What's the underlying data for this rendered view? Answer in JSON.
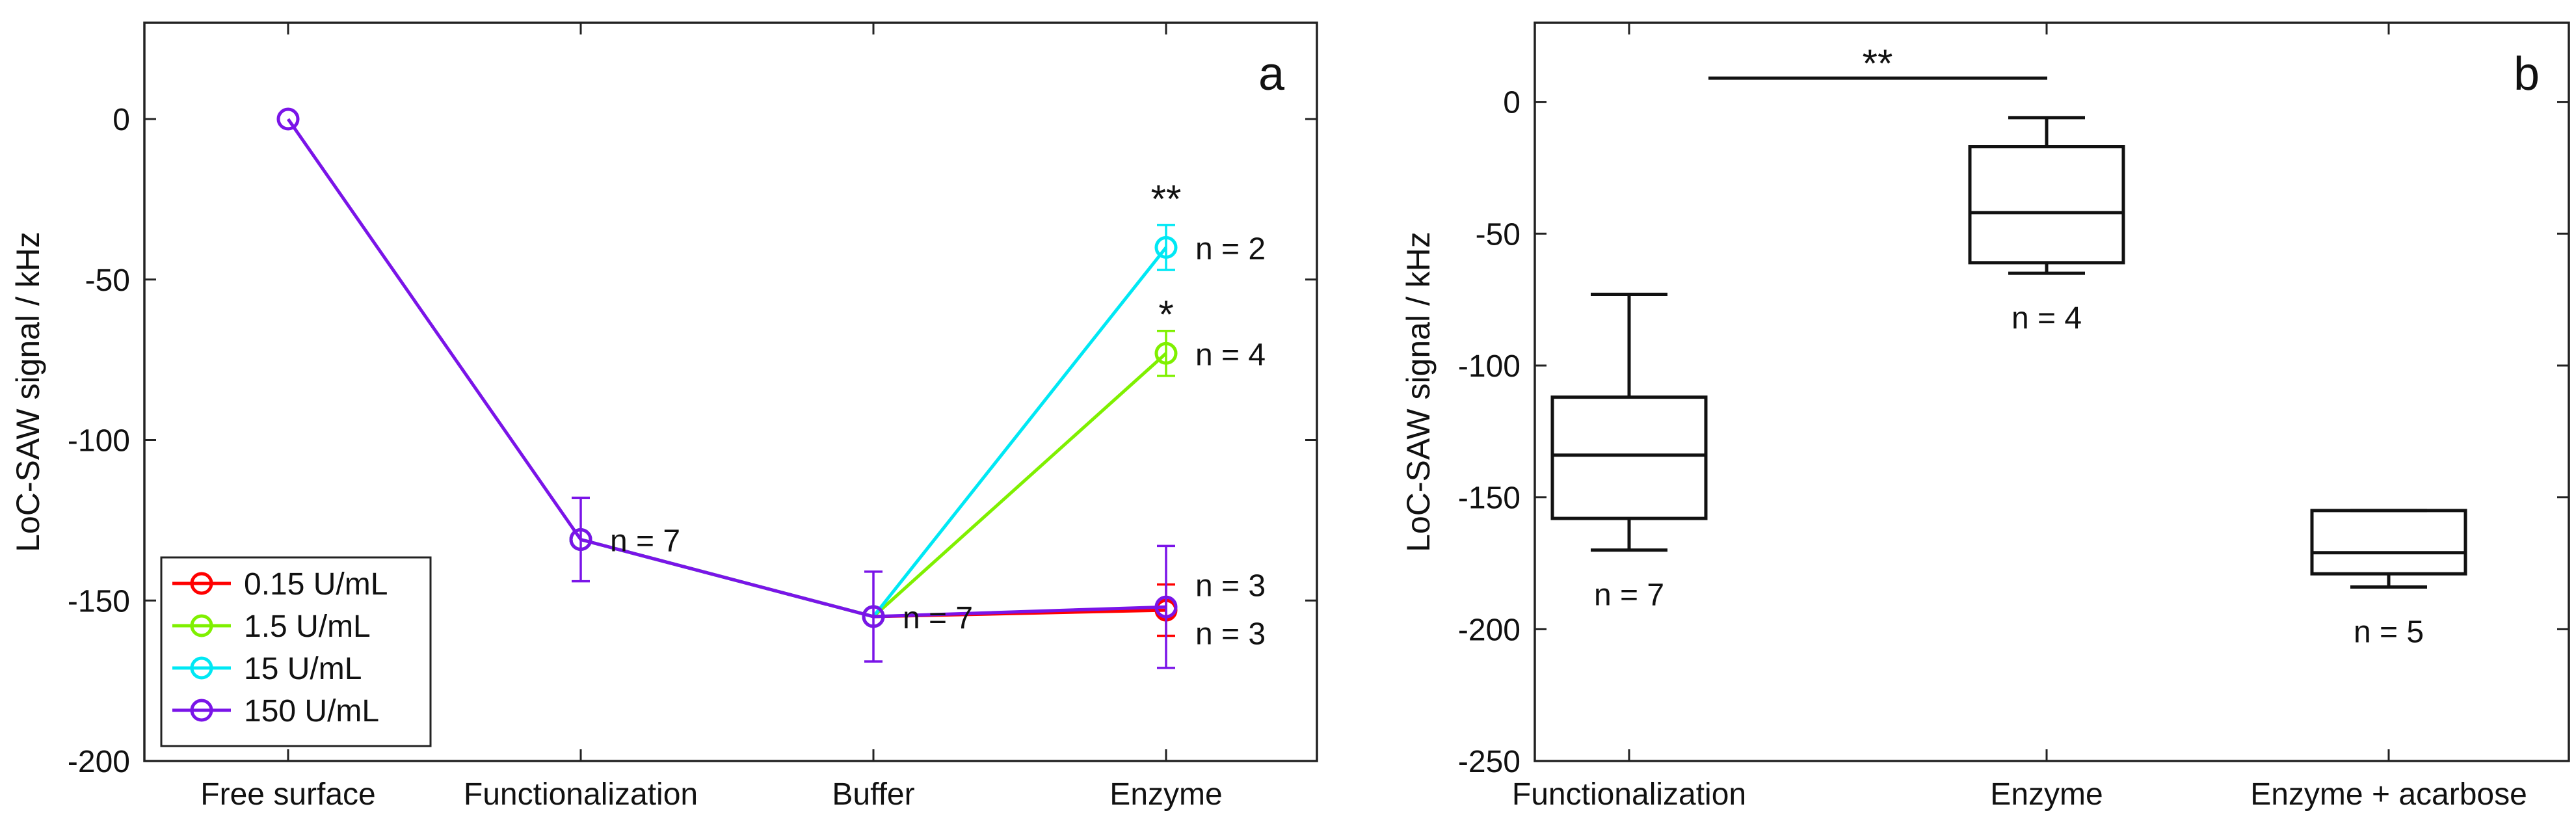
{
  "chart_data": [
    {
      "type": "line",
      "panel_label": "a",
      "xlabel": "",
      "ylabel": "LoC-SAW signal / kHz",
      "categories": [
        "Free surface",
        "Functionalization",
        "Buffer",
        "Enzyme"
      ],
      "ylim": [
        -200,
        30
      ],
      "yticks": [
        0,
        -50,
        -100,
        -150,
        -200
      ],
      "series": [
        {
          "name": "0.15 U/mL",
          "color": "#ff0000",
          "x": [
            2,
            3,
            4
          ],
          "y": [
            -131,
            -155,
            -153
          ],
          "err": [
            null,
            null,
            8
          ]
        },
        {
          "name": "1.5 U/mL",
          "color": "#7ff000",
          "x": [
            2,
            3,
            4
          ],
          "y": [
            -131,
            -155,
            -73
          ],
          "err": [
            null,
            null,
            7
          ]
        },
        {
          "name": "15 U/mL",
          "color": "#00e8f4",
          "x": [
            2,
            3,
            4
          ],
          "y": [
            -131,
            -155,
            -40
          ],
          "err": [
            null,
            null,
            7
          ]
        },
        {
          "name": "150 U/mL",
          "color": "#7a14e8",
          "x": [
            1,
            2,
            3,
            4
          ],
          "y": [
            0,
            -131,
            -155,
            -152
          ],
          "err": [
            0,
            13,
            14,
            19
          ]
        }
      ],
      "annotations": [
        {
          "text": "n = 7",
          "x": 2,
          "y": -131,
          "side": "right"
        },
        {
          "text": "n = 7",
          "x": 3,
          "y": -155,
          "side": "right"
        },
        {
          "text": "n = 2",
          "x": 4,
          "y": -40,
          "side": "right"
        },
        {
          "text": "n = 4",
          "x": 4,
          "y": -73,
          "side": "right"
        },
        {
          "text": "n = 3",
          "x": 4,
          "y": -145,
          "side": "right"
        },
        {
          "text": "n = 3",
          "x": 4,
          "y": -160,
          "side": "right"
        },
        {
          "text": "**",
          "x": 4,
          "y": -27,
          "side": "above"
        },
        {
          "text": "*",
          "x": 4,
          "y": -63,
          "side": "above"
        }
      ],
      "legend": {
        "placement": "bottom-left",
        "entries": [
          "0.15 U/mL",
          "1.5 U/mL",
          "15 U/mL",
          "150 U/mL"
        ]
      }
    },
    {
      "type": "box",
      "panel_label": "b",
      "xlabel": "",
      "ylabel": "LoC-SAW signal / kHz",
      "categories": [
        "Functionalization",
        "Enzyme",
        "Enzyme + acarbose"
      ],
      "ylim": [
        -250,
        30
      ],
      "yticks": [
        0,
        -50,
        -100,
        -150,
        -200,
        -250
      ],
      "boxes": [
        {
          "category": "Functionalization",
          "whisker_high": -73,
          "q3": -112,
          "median": -134,
          "q1": -158,
          "whisker_low": -170,
          "n_label": "n = 7"
        },
        {
          "category": "Enzyme",
          "whisker_high": -6,
          "q3": -17,
          "median": -42,
          "q1": -61,
          "whisker_low": -65,
          "n_label": "n = 4"
        },
        {
          "category": "Enzyme + acarbose",
          "whisker_high": -155,
          "q3": -155,
          "median": -171,
          "q1": -179,
          "whisker_low": -184,
          "n_label": "n = 5"
        }
      ],
      "significance": {
        "from": "Functionalization",
        "to": "Enzyme",
        "y": 9,
        "label": "**"
      }
    }
  ]
}
